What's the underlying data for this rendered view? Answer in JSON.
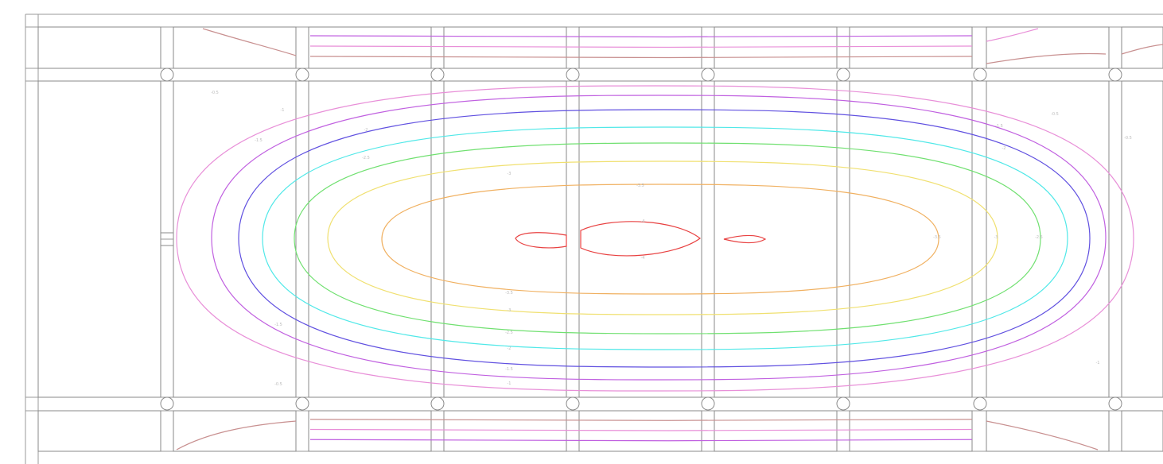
{
  "drawing": {
    "type": "floor-slab contour plan",
    "background": "#ffffff",
    "line_color": "#8a8a8a",
    "column_symbol": "circle"
  },
  "contour_levels": [
    {
      "level": "-0.5",
      "color": "#e88fd8"
    },
    {
      "level": "-1",
      "color": "#c060e0"
    },
    {
      "level": "-1.5",
      "color": "#6050e0"
    },
    {
      "level": "-2",
      "color": "#50e8e8"
    },
    {
      "level": "-2.5",
      "color": "#70e070"
    },
    {
      "level": "-3",
      "color": "#f0e070"
    },
    {
      "level": "-3.5",
      "color": "#f0b060"
    },
    {
      "level": "-4",
      "color": "#e84040"
    },
    {
      "level": "edge",
      "color": "#c89090"
    }
  ],
  "labels": {
    "l1": "-0.5",
    "l2": "-1",
    "l3": "-1.5",
    "l4": "-2",
    "l5": "-2.5",
    "l6": "-3",
    "l7": "-3.5",
    "l8": "-4"
  }
}
